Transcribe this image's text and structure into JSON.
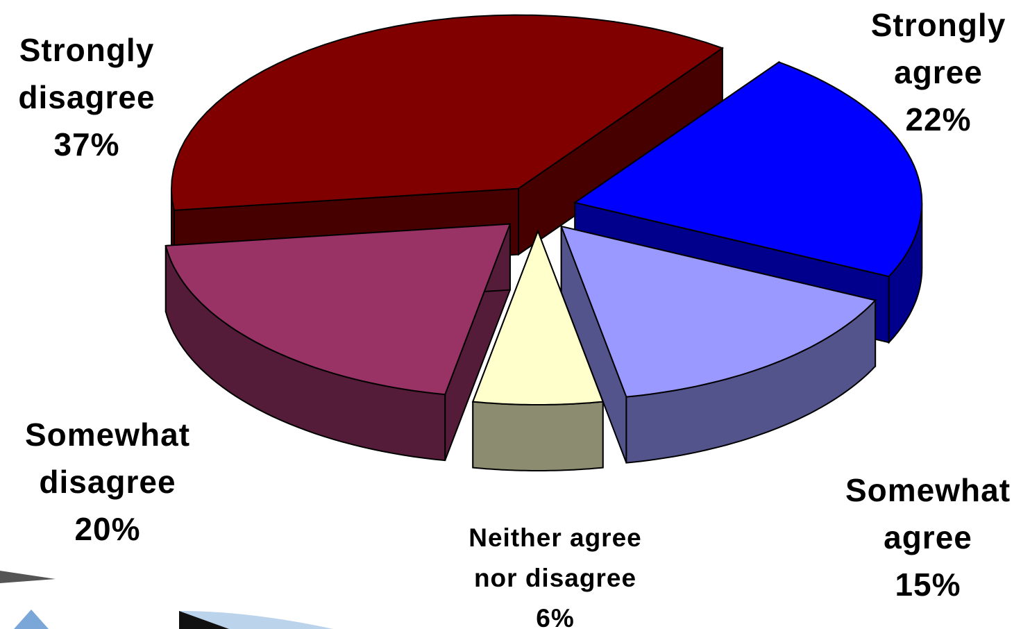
{
  "chart_data": {
    "type": "pie3d",
    "categories": [
      "Strongly agree",
      "Somewhat agree",
      "Neither agree nor disagree",
      "Somewhat disagree",
      "Strongly disagree"
    ],
    "values": [
      22,
      15,
      6,
      20,
      37
    ],
    "value_labels": [
      "22%",
      "15%",
      "6%",
      "20%",
      "37%"
    ],
    "colors": [
      "#0000ff",
      "#9999ff",
      "#ffffcc",
      "#993366",
      "#800000"
    ]
  }
}
